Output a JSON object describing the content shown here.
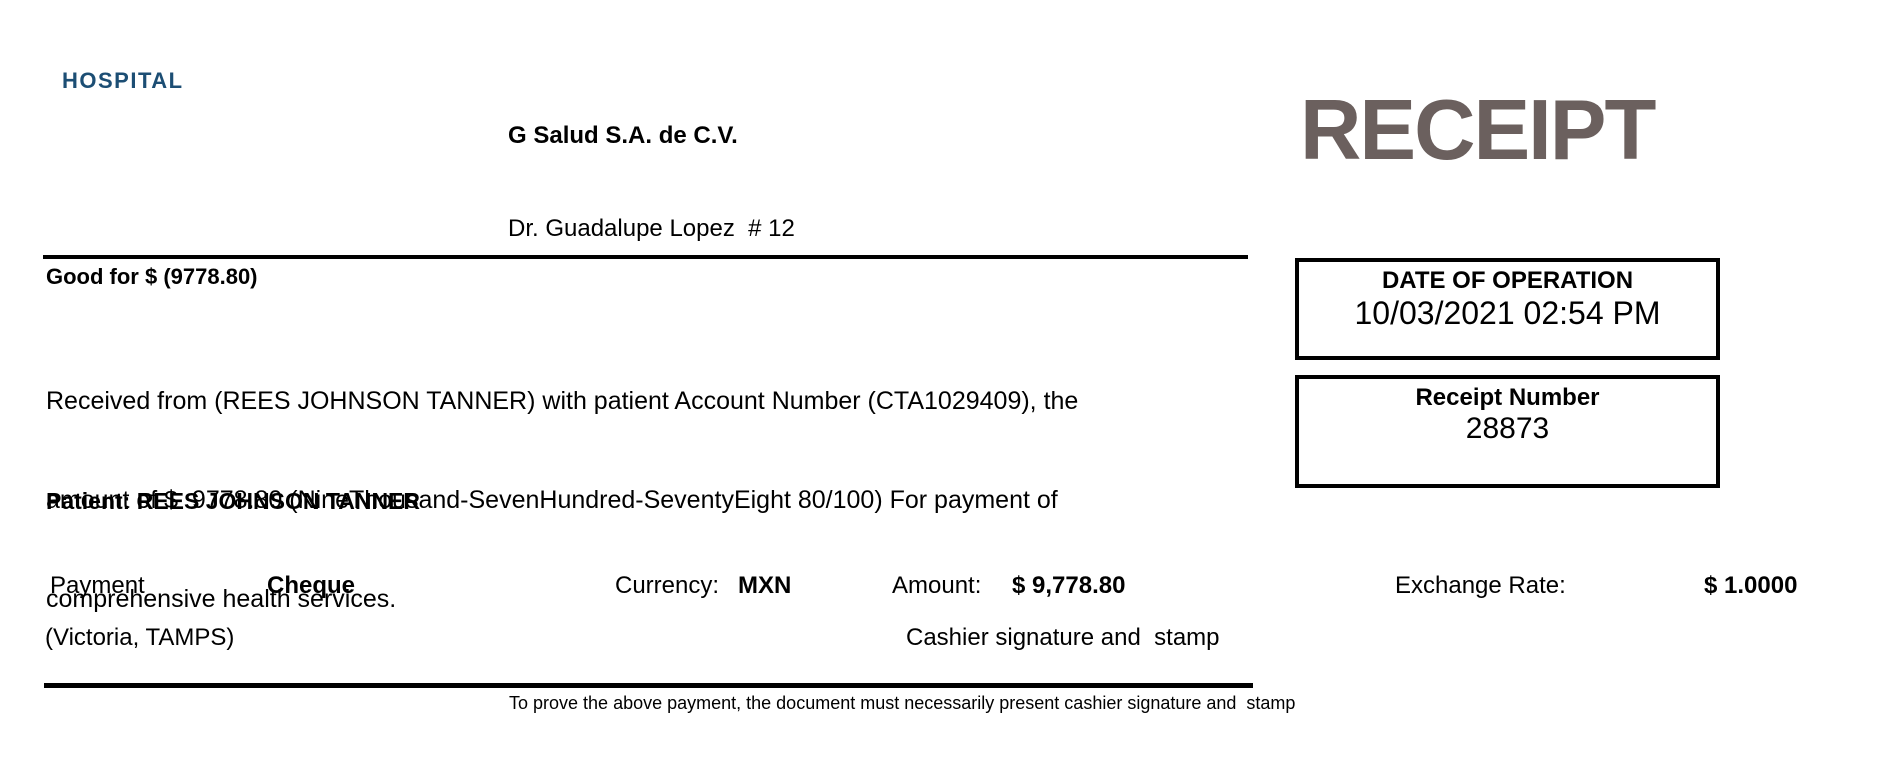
{
  "header": {
    "logo_text": "HOSPITAL",
    "logo_color": "#1c4e74",
    "company_name": "G Salud S.A. de C.V.",
    "company_address": "Dr. Guadalupe Lopez  # 12",
    "title": "RECEIPT",
    "title_color": "#6b605e"
  },
  "summary": {
    "good_for": "Good for $ (9778.80)",
    "body_lines": [
      "Received from (REES JOHNSON TANNER) with patient Account Number (CTA1029409), the",
      "amount of $  9778.80 (NineThousand-SevenHundred-SeventyEight 80/100) For payment of",
      "comprehensive health services."
    ],
    "patient_line": "Patient: REES JOHNSON TANNER"
  },
  "info_boxes": {
    "date_box": {
      "label": "DATE OF OPERATION",
      "value": "10/03/2021 02:54 PM"
    },
    "receipt_box": {
      "label": "Receipt Number",
      "value": "28873"
    }
  },
  "payment_row": {
    "payment_label": "Payment",
    "payment_method": "Cheque",
    "currency_label": "Currency:",
    "currency_value": "MXN",
    "amount_label": "Amount:",
    "amount_value": "$ 9,778.80",
    "exchange_label": "Exchange Rate:",
    "exchange_value": "$ 1.0000"
  },
  "footer": {
    "location": "(Victoria, TAMPS)",
    "cashier_note": "Cashier signature and  stamp",
    "disclaimer": "To prove the above payment, the document must necessarily present cashier signature and  stamp"
  }
}
